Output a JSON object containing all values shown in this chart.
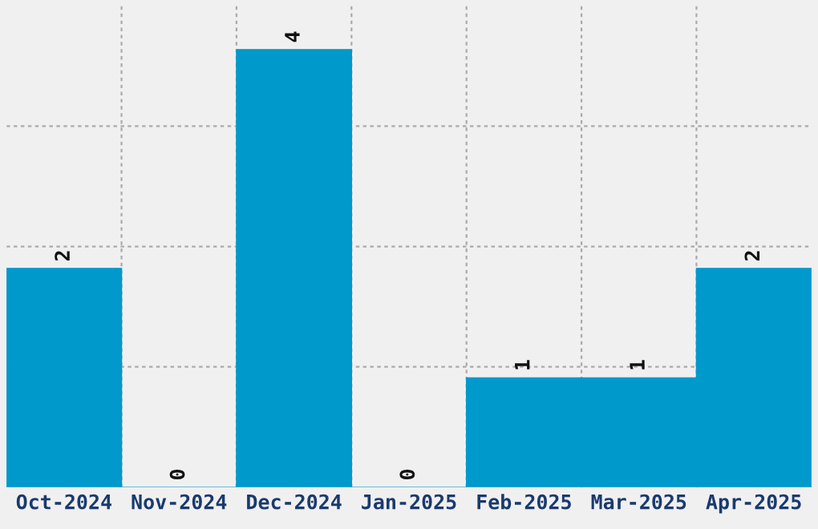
{
  "chart_data": {
    "type": "bar",
    "categories": [
      "Oct-2024",
      "Nov-2024",
      "Dec-2024",
      "Jan-2025",
      "Feb-2025",
      "Mar-2025",
      "Apr-2025"
    ],
    "values": [
      2,
      0,
      4,
      0,
      1,
      1,
      2
    ],
    "color": "#0099cc",
    "ylim": [
      0,
      4.4
    ],
    "yticks": [
      {
        "value": 1.1,
        "label": null
      },
      {
        "value": 2.2,
        "label": null
      },
      {
        "value": 3.3,
        "label": null
      }
    ],
    "tick_labels": "x",
    "grid": true,
    "data_labels": true
  }
}
